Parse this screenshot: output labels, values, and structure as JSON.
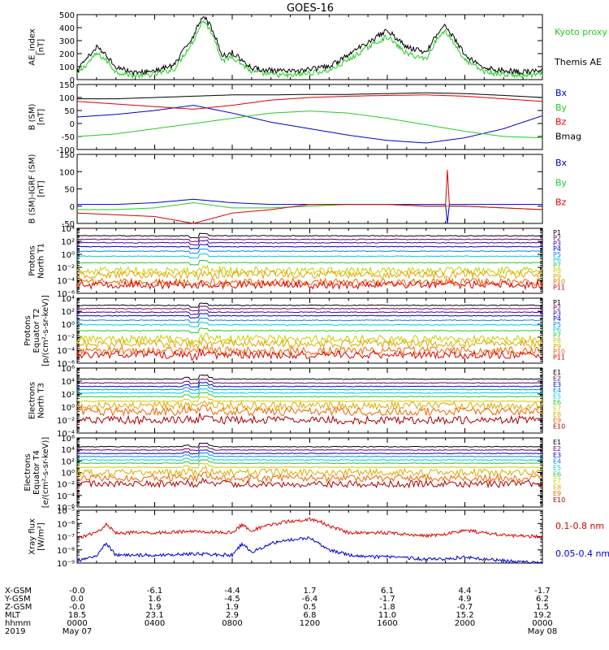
{
  "title": "GOES-16",
  "colors": {
    "black": "#000000",
    "green": "#22cc22",
    "red": "#dd0000",
    "blue": "#0000cc"
  },
  "chart_data": [
    {
      "type": "line",
      "panel": "ae-index",
      "ylabel": [
        "AE_index",
        "[nT]"
      ],
      "ylim": [
        0,
        500
      ],
      "yticks": [
        "500",
        "400",
        "300",
        "200",
        "100",
        "0"
      ],
      "tick_values": [
        500,
        400,
        300,
        200,
        100,
        0
      ],
      "series": [
        {
          "name": "Kyoto proxy AE",
          "color": "#22cc22",
          "x": [
            0,
            1,
            1.5,
            2,
            3,
            4,
            5,
            6,
            6.5,
            7,
            7.5,
            8,
            9,
            10,
            11,
            12,
            12.5,
            13,
            14,
            15,
            16,
            17,
            18,
            18.5,
            19,
            20,
            21,
            22,
            23,
            24
          ],
          "y": [
            40,
            200,
            150,
            60,
            30,
            40,
            80,
            300,
            460,
            350,
            140,
            180,
            60,
            40,
            30,
            50,
            60,
            70,
            150,
            250,
            330,
            200,
            160,
            300,
            380,
            150,
            60,
            40,
            30,
            40
          ]
        },
        {
          "name": "Themis AE",
          "color": "#000000",
          "x": [
            0,
            1,
            1.5,
            2,
            3,
            4,
            5,
            6,
            6.5,
            7,
            7.5,
            8,
            9,
            10,
            11,
            12,
            12.5,
            13,
            14,
            15,
            16,
            17,
            18,
            18.5,
            19,
            20,
            21,
            22,
            23,
            24
          ],
          "y": [
            70,
            250,
            190,
            100,
            50,
            70,
            110,
            340,
            500,
            380,
            180,
            210,
            90,
            70,
            60,
            80,
            90,
            100,
            190,
            290,
            380,
            250,
            210,
            340,
            420,
            190,
            90,
            70,
            60,
            70
          ]
        }
      ]
    },
    {
      "type": "line",
      "panel": "b-sm",
      "ylabel": [
        "B (SM)",
        "[nT]"
      ],
      "ylim": [
        -100,
        150
      ],
      "yticks": [
        "150",
        "100",
        "50",
        "0",
        "-50",
        "-100"
      ],
      "tick_values": [
        150,
        100,
        50,
        0,
        -50,
        -100
      ],
      "series": [
        {
          "name": "Bx",
          "color": "#0000cc",
          "x": [
            0,
            2,
            4,
            6,
            8,
            10,
            12,
            14,
            16,
            18,
            20,
            22,
            24
          ],
          "y": [
            25,
            35,
            50,
            70,
            40,
            5,
            -20,
            -45,
            -65,
            -75,
            -55,
            -20,
            30
          ]
        },
        {
          "name": "By",
          "color": "#22cc22",
          "x": [
            0,
            2,
            4,
            6,
            8,
            10,
            12,
            14,
            16,
            18,
            20,
            22,
            24
          ],
          "y": [
            -50,
            -40,
            -20,
            0,
            20,
            40,
            48,
            40,
            20,
            -5,
            -30,
            -50,
            -55
          ]
        },
        {
          "name": "Bz",
          "color": "#dd0000",
          "x": [
            0,
            2,
            4,
            6,
            8,
            10,
            12,
            14,
            16,
            18,
            20,
            22,
            24
          ],
          "y": [
            85,
            75,
            65,
            55,
            70,
            90,
            100,
            105,
            108,
            110,
            105,
            95,
            85
          ]
        },
        {
          "name": "Bmag",
          "color": "#000000",
          "x": [
            0,
            2,
            4,
            6,
            8,
            10,
            12,
            14,
            16,
            18,
            20,
            22,
            24
          ],
          "y": [
            95,
            95,
            100,
            105,
            110,
            110,
            112,
            112,
            115,
            118,
            115,
            108,
            100
          ]
        }
      ]
    },
    {
      "type": "line",
      "panel": "b-minus-igrf",
      "ylabel": [
        "B (SM)-IGRF (SM)",
        "[nT]"
      ],
      "ylim": [
        -50,
        150
      ],
      "yticks": [
        "150",
        "100",
        "50",
        "0",
        "-50"
      ],
      "tick_values": [
        150,
        100,
        50,
        0,
        -50
      ],
      "series": [
        {
          "name": "Bx",
          "color": "#0000cc",
          "x": [
            0,
            2,
            4,
            6,
            8,
            10,
            12,
            14,
            16,
            18,
            19,
            19.1,
            19.2,
            20,
            22,
            24
          ],
          "y": [
            5,
            5,
            10,
            20,
            10,
            5,
            5,
            5,
            5,
            5,
            5,
            -50,
            5,
            5,
            5,
            5
          ]
        },
        {
          "name": "By",
          "color": "#22cc22",
          "x": [
            0,
            2,
            4,
            6,
            8,
            10,
            12,
            14,
            16,
            18,
            20,
            22,
            24
          ],
          "y": [
            -10,
            -10,
            -5,
            10,
            -5,
            -5,
            0,
            5,
            5,
            0,
            0,
            -5,
            -10
          ]
        },
        {
          "name": "Bz",
          "color": "#dd0000",
          "x": [
            0,
            2,
            4,
            6,
            8,
            10,
            12,
            14,
            16,
            18,
            19,
            19.1,
            19.2,
            20,
            22,
            24
          ],
          "y": [
            -20,
            -25,
            -30,
            -50,
            -20,
            -10,
            5,
            5,
            5,
            0,
            0,
            105,
            0,
            0,
            -5,
            -10
          ]
        }
      ]
    },
    {
      "type": "line",
      "panel": "protons-north",
      "ylabel": [
        "Protons",
        "North T1"
      ],
      "yscale": "log",
      "ylim": [
        1e-06,
        10000.0
      ],
      "yticks": [
        "10⁴",
        "10²",
        "10⁰",
        "10⁻²",
        "10⁻⁴",
        "10⁻⁶"
      ],
      "tick_values": [
        10000,
        100,
        1,
        0.01,
        0.0001,
        1e-06
      ],
      "series": [
        {
          "name": "P1",
          "color": "#000000",
          "level": 700
        },
        {
          "name": "P2",
          "color": "#660066",
          "level": 200
        },
        {
          "name": "P3",
          "color": "#4400aa",
          "level": 60
        },
        {
          "name": "P4",
          "color": "#0000cc",
          "level": 15
        },
        {
          "name": "P5",
          "color": "#0088ee",
          "level": 3
        },
        {
          "name": "P6",
          "color": "#00cccc",
          "level": 0.5
        },
        {
          "name": "P7",
          "color": "#22cc22",
          "level": 0.05
        },
        {
          "name": "P8",
          "color": "#cccc00",
          "level": 0.003
        },
        {
          "name": "P9",
          "color": "#ddaa00",
          "level": 0.0008
        },
        {
          "name": "P10",
          "color": "#ee6600",
          "level": 5e-05
        },
        {
          "name": "P11",
          "color": "#dd0000",
          "level": 2e-05
        }
      ]
    },
    {
      "type": "line",
      "panel": "protons-equator",
      "ylabel": [
        "Protons",
        "Equator T2",
        "[p/(cm²-s-sr-keV)]"
      ],
      "yscale": "log",
      "ylim": [
        1e-06,
        10000.0
      ],
      "yticks": [
        "10⁴",
        "10²",
        "10⁰",
        "10⁻²",
        "10⁻⁴",
        "10⁻⁶"
      ],
      "tick_values": [
        10000,
        100,
        1,
        0.01,
        0.0001,
        1e-06
      ],
      "series": [
        {
          "name": "P1",
          "color": "#000000",
          "level": 800
        },
        {
          "name": "P2",
          "color": "#660066",
          "level": 250
        },
        {
          "name": "P3",
          "color": "#4400aa",
          "level": 70
        },
        {
          "name": "P4",
          "color": "#0000cc",
          "level": 20
        },
        {
          "name": "P5",
          "color": "#0088ee",
          "level": 4
        },
        {
          "name": "P6",
          "color": "#00cccc",
          "level": 0.8
        },
        {
          "name": "P7",
          "color": "#22cc22",
          "level": 0.1
        },
        {
          "name": "P8",
          "color": "#cccc00",
          "level": 0.005
        },
        {
          "name": "P9",
          "color": "#ddaa00",
          "level": 0.001
        },
        {
          "name": "P10",
          "color": "#ee6600",
          "level": 8e-05
        },
        {
          "name": "P11",
          "color": "#dd0000",
          "level": 2e-05
        }
      ]
    },
    {
      "type": "line",
      "panel": "electrons-north",
      "ylabel": [
        "Electrons",
        "North T3"
      ],
      "yscale": "log",
      "ylim": [
        0.0001,
        1000000.0
      ],
      "yticks": [
        "10⁶",
        "10⁴",
        "10²",
        "10⁰",
        "10⁻²",
        "10⁻⁴"
      ],
      "tick_values": [
        1000000,
        10000,
        100,
        1,
        0.01,
        0.0001
      ],
      "series": [
        {
          "name": "E1",
          "color": "#000000",
          "level": 20000
        },
        {
          "name": "E2",
          "color": "#660066",
          "level": 5000
        },
        {
          "name": "E3",
          "color": "#0000cc",
          "level": 1500
        },
        {
          "name": "E4",
          "color": "#0088ee",
          "level": 500
        },
        {
          "name": "E5",
          "color": "#00cccc",
          "level": 150
        },
        {
          "name": "E6",
          "color": "#22cc22",
          "level": 40
        },
        {
          "name": "E7",
          "color": "#cccc00",
          "level": 8
        },
        {
          "name": "E8",
          "color": "#ddaa00",
          "level": 1.5
        },
        {
          "name": "E9",
          "color": "#ee6600",
          "level": 0.2
        },
        {
          "name": "E10",
          "color": "#aa0000",
          "level": 0.01
        }
      ]
    },
    {
      "type": "line",
      "panel": "electrons-equator",
      "ylabel": [
        "Electrons",
        "Equator T4",
        "[e/(cm²-s-sr-keV)]"
      ],
      "yscale": "log",
      "ylim": [
        1e-06,
        1000000.0
      ],
      "yticks": [
        "10⁶",
        "10⁴",
        "10²",
        "10⁰",
        "10⁻²",
        "10⁻⁴",
        "10⁻⁶"
      ],
      "tick_values": [
        1000000,
        10000,
        100,
        1,
        0.01,
        0.0001,
        1e-06
      ],
      "series": [
        {
          "name": "E1",
          "color": "#000000",
          "level": 30000
        },
        {
          "name": "E2",
          "color": "#660066",
          "level": 8000
        },
        {
          "name": "E3",
          "color": "#0000cc",
          "level": 2000
        },
        {
          "name": "E4",
          "color": "#0088ee",
          "level": 600
        },
        {
          "name": "E5",
          "color": "#00cccc",
          "level": 150
        },
        {
          "name": "E6",
          "color": "#22cc22",
          "level": 40
        },
        {
          "name": "E7",
          "color": "#cccc00",
          "level": 8
        },
        {
          "name": "E8",
          "color": "#ddaa00",
          "level": 1
        },
        {
          "name": "E9",
          "color": "#ee6600",
          "level": 0.1
        },
        {
          "name": "E10",
          "color": "#aa0000",
          "level": 0.01
        }
      ]
    },
    {
      "type": "line",
      "panel": "xray-flux",
      "ylabel": [
        "Xray flux",
        "[W/m²]"
      ],
      "yscale": "log",
      "ylim": [
        1e-09,
        1e-05
      ],
      "yticks": [
        "10⁻⁵",
        "10⁻⁶",
        "10⁻⁷",
        "10⁻⁸",
        "10⁻⁹"
      ],
      "tick_values": [
        1e-05,
        1e-06,
        1e-07,
        1e-08,
        1e-09
      ],
      "series": [
        {
          "name": "0.1-0.8 nm",
          "color": "#dd0000",
          "x": [
            0,
            1,
            1.5,
            2,
            4,
            6,
            8,
            8.5,
            9,
            10,
            11,
            12,
            12.5,
            13,
            14,
            15,
            16,
            17,
            18,
            19,
            20,
            21,
            22,
            24
          ],
          "y": [
            8e-08,
            2e-07,
            8e-07,
            2e-07,
            2e-07,
            2.5e-07,
            2e-07,
            8e-07,
            3e-07,
            8e-07,
            1.5e-06,
            2e-06,
            1.5e-06,
            6e-07,
            2e-07,
            2e-07,
            2e-07,
            1.5e-07,
            1.2e-07,
            1.5e-07,
            3e-07,
            2e-07,
            1.3e-07,
            1e-07
          ]
        },
        {
          "name": "0.05-0.4 nm",
          "color": "#0000cc",
          "x": [
            0,
            1,
            1.5,
            2,
            4,
            6,
            8,
            8.5,
            9,
            10,
            11,
            12,
            12.5,
            13,
            14,
            15,
            16,
            17,
            18,
            19,
            20,
            21,
            22,
            24
          ],
          "y": [
            1.5e-09,
            4e-09,
            3e-08,
            4e-09,
            4e-09,
            5e-09,
            4e-09,
            3e-08,
            7e-09,
            3e-08,
            6e-08,
            8e-08,
            3e-08,
            1e-08,
            4e-09,
            3e-09,
            3e-09,
            2.5e-09,
            2e-09,
            2e-09,
            3e-09,
            2e-09,
            1.5e-09,
            1e-09
          ]
        }
      ]
    }
  ],
  "x_axis": {
    "xlim": [
      0,
      24
    ],
    "tick_hours": [
      0,
      4,
      8,
      12,
      16,
      20,
      24
    ],
    "row_labels": [
      "X-GSM",
      "Y-GSM",
      "Z-GSM",
      "MLT",
      "hhmm",
      "2019"
    ],
    "columns": [
      [
        "-0.0",
        "0.0",
        "-0.0",
        "18.5",
        "0000",
        "May 07"
      ],
      [
        "-6.1",
        "1.6",
        "1.9",
        "23.1",
        "0400",
        ""
      ],
      [
        "-4.4",
        "-4.5",
        "1.9",
        "2.9",
        "0800",
        ""
      ],
      [
        "1.7",
        "-6.4",
        "0.5",
        "6.8",
        "1200",
        ""
      ],
      [
        "6.1",
        "-1.7",
        "-1.8",
        "11.0",
        "1600",
        ""
      ],
      [
        "4.4",
        "4.9",
        "-0.7",
        "15.2",
        "2000",
        ""
      ],
      [
        "-1.7",
        "6.2",
        "1.5",
        "19.2",
        "0000",
        "May 08"
      ]
    ]
  }
}
